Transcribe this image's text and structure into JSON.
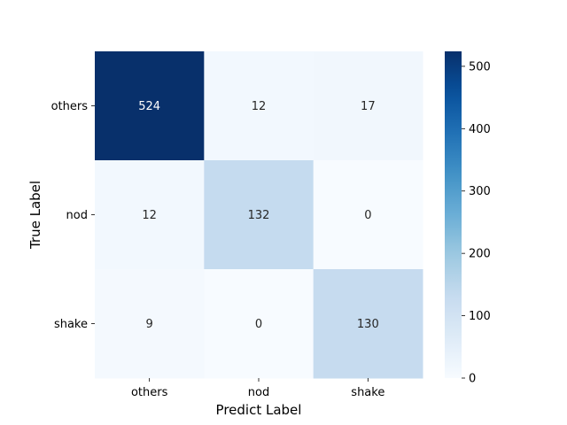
{
  "chart_data": {
    "type": "heatmap",
    "title": "",
    "xlabel": "Predict Label",
    "ylabel": "True Label",
    "x_categories": [
      "others",
      "nod",
      "shake"
    ],
    "y_categories": [
      "others",
      "nod",
      "shake"
    ],
    "matrix": [
      [
        524,
        12,
        17
      ],
      [
        12,
        132,
        0
      ],
      [
        9,
        0,
        130
      ]
    ],
    "colormap": "Blues",
    "colorbar": {
      "range": [
        0,
        524
      ],
      "ticks": [
        0,
        100,
        200,
        300,
        400,
        500
      ]
    },
    "colors": {
      "scale_low": "#f7fbff",
      "scale_high": "#08306b",
      "label_dark": "#262626",
      "label_light": "#ffffff"
    }
  }
}
